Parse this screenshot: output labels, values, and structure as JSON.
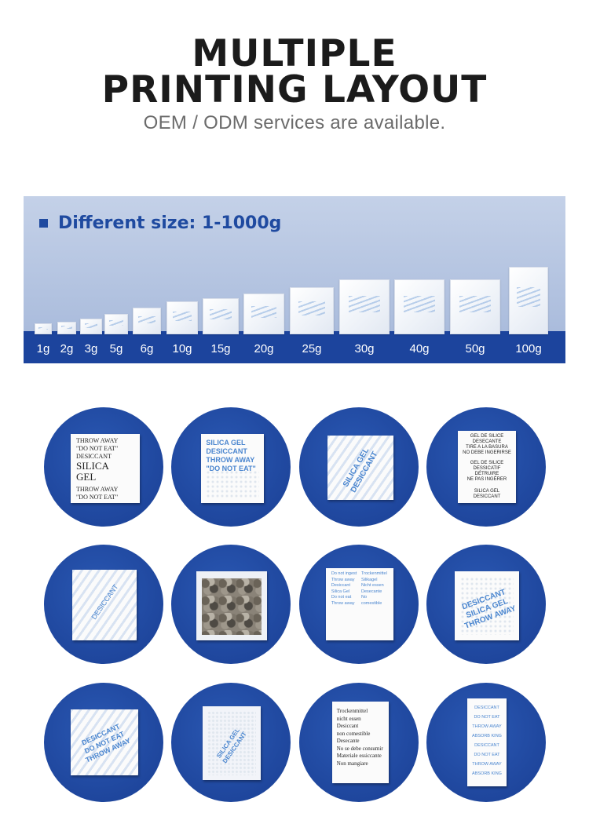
{
  "header": {
    "title_line1": "MULTIPLE",
    "title_line2": "PRINTING LAYOUT",
    "subtitle": "OEM / ODM services are available."
  },
  "size_banner": {
    "heading": "Different size: 1-1000g",
    "sizes": [
      "1g",
      "2g",
      "3g",
      "5g",
      "6g",
      "10g",
      "15g",
      "20g",
      "25g",
      "30g",
      "40g",
      "50g",
      "100g"
    ]
  },
  "samples": {
    "s1": {
      "lines_top": "THROW AWAY\n\"DO NOT EAT\"\nDESICCANT",
      "lines_big": "SILICA\nGEL",
      "lines_bottom": "THROW AWAY\n\"DO NOT EAT\""
    },
    "s2": {
      "lines": "SILICA GEL\nDESICCANT\nTHROW AWAY\n\"DO NOT EAT\""
    },
    "s3": {
      "lines": "SILICA GEL\nDESICCANT"
    },
    "s4": {
      "lines_top": "GEL DE SILICE\nDESECANTE\nTIRE A LA BASURA\nNO DEBE INGERIRSE",
      "lines_mid": "GEL DE SILICE\nDESSICATIF\nDÉTRUIRE\nNE PAS INGÉRER",
      "lines_bottom": "SILICA GEL\nDESICCANT"
    },
    "s5": {
      "lines": "DESICCANT"
    },
    "s7": {
      "lines": "Do not ingest\nThrow away\nDesiccant\nSilica Gel\nDo not eat\nThrow away\nTrockenmittel\nSilikagel\nNicht essen\nDesecante\nNo comestible"
    },
    "s8": {
      "lines": "DESICCANT\nSILICA GEL\nTHROW AWAY"
    },
    "s9": {
      "lines": "DESICCANT\nDO NOT EAT\nTHROW AWAY"
    },
    "s10": {
      "lines": "SILICA GEL\nDESICCANT"
    },
    "s11": {
      "lines": "Trockenmittel\nnicht essen\nDesiccant\nnon comestible\nDesecante\nNo se debe consumir\nMateriale essiccante\nNon mangiare"
    },
    "s12": {
      "lines": "DESICCANT\nDO NOT EAT\nTHROW AWAY\nABSORB KING\nDESICCANT\nDO NOT EAT\nTHROW AWAY\nABSORB KING"
    }
  },
  "colors": {
    "brand_blue": "#1c449d",
    "circle_blue": "#1f4aa0",
    "banner_bg": "#b3c3df",
    "title": "#1b1b1b"
  }
}
